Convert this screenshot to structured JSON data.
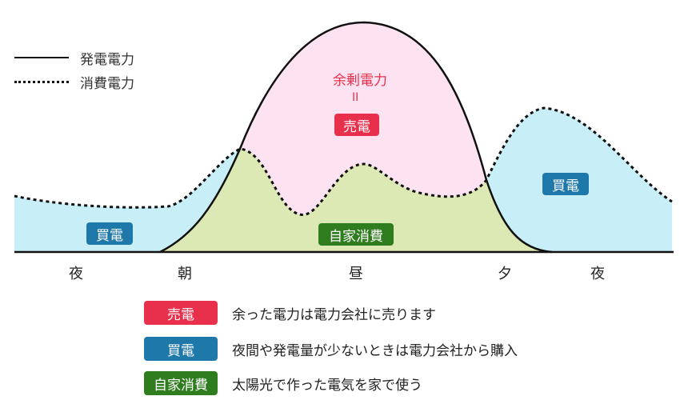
{
  "legend": {
    "generation": "発電電力",
    "consumption": "消費電力"
  },
  "annotations": {
    "surplus": "余剰電力",
    "equals": "II",
    "sell": "売電",
    "buy_left": "買電",
    "buy_right": "買電",
    "self_consumption": "自家消費"
  },
  "time_axis": {
    "labels": [
      "夜",
      "朝",
      "昼",
      "夕",
      "夜"
    ]
  },
  "explanations": [
    {
      "badge": "売電",
      "text": "余った電力は電力会社に売ります",
      "color": "#e8304c"
    },
    {
      "badge": "買電",
      "text": "夜間や発電量が少ないときは電力会社から購入",
      "color": "#1f78aa"
    },
    {
      "badge": "自家消費",
      "text": "太陽光で作った電気を家で使う",
      "color": "#2f7d1f"
    }
  ],
  "colors": {
    "sell_area": "#fde3f1",
    "buy_area": "#c8eef7",
    "self_area": "#dce9b4",
    "line": "#111111"
  }
}
